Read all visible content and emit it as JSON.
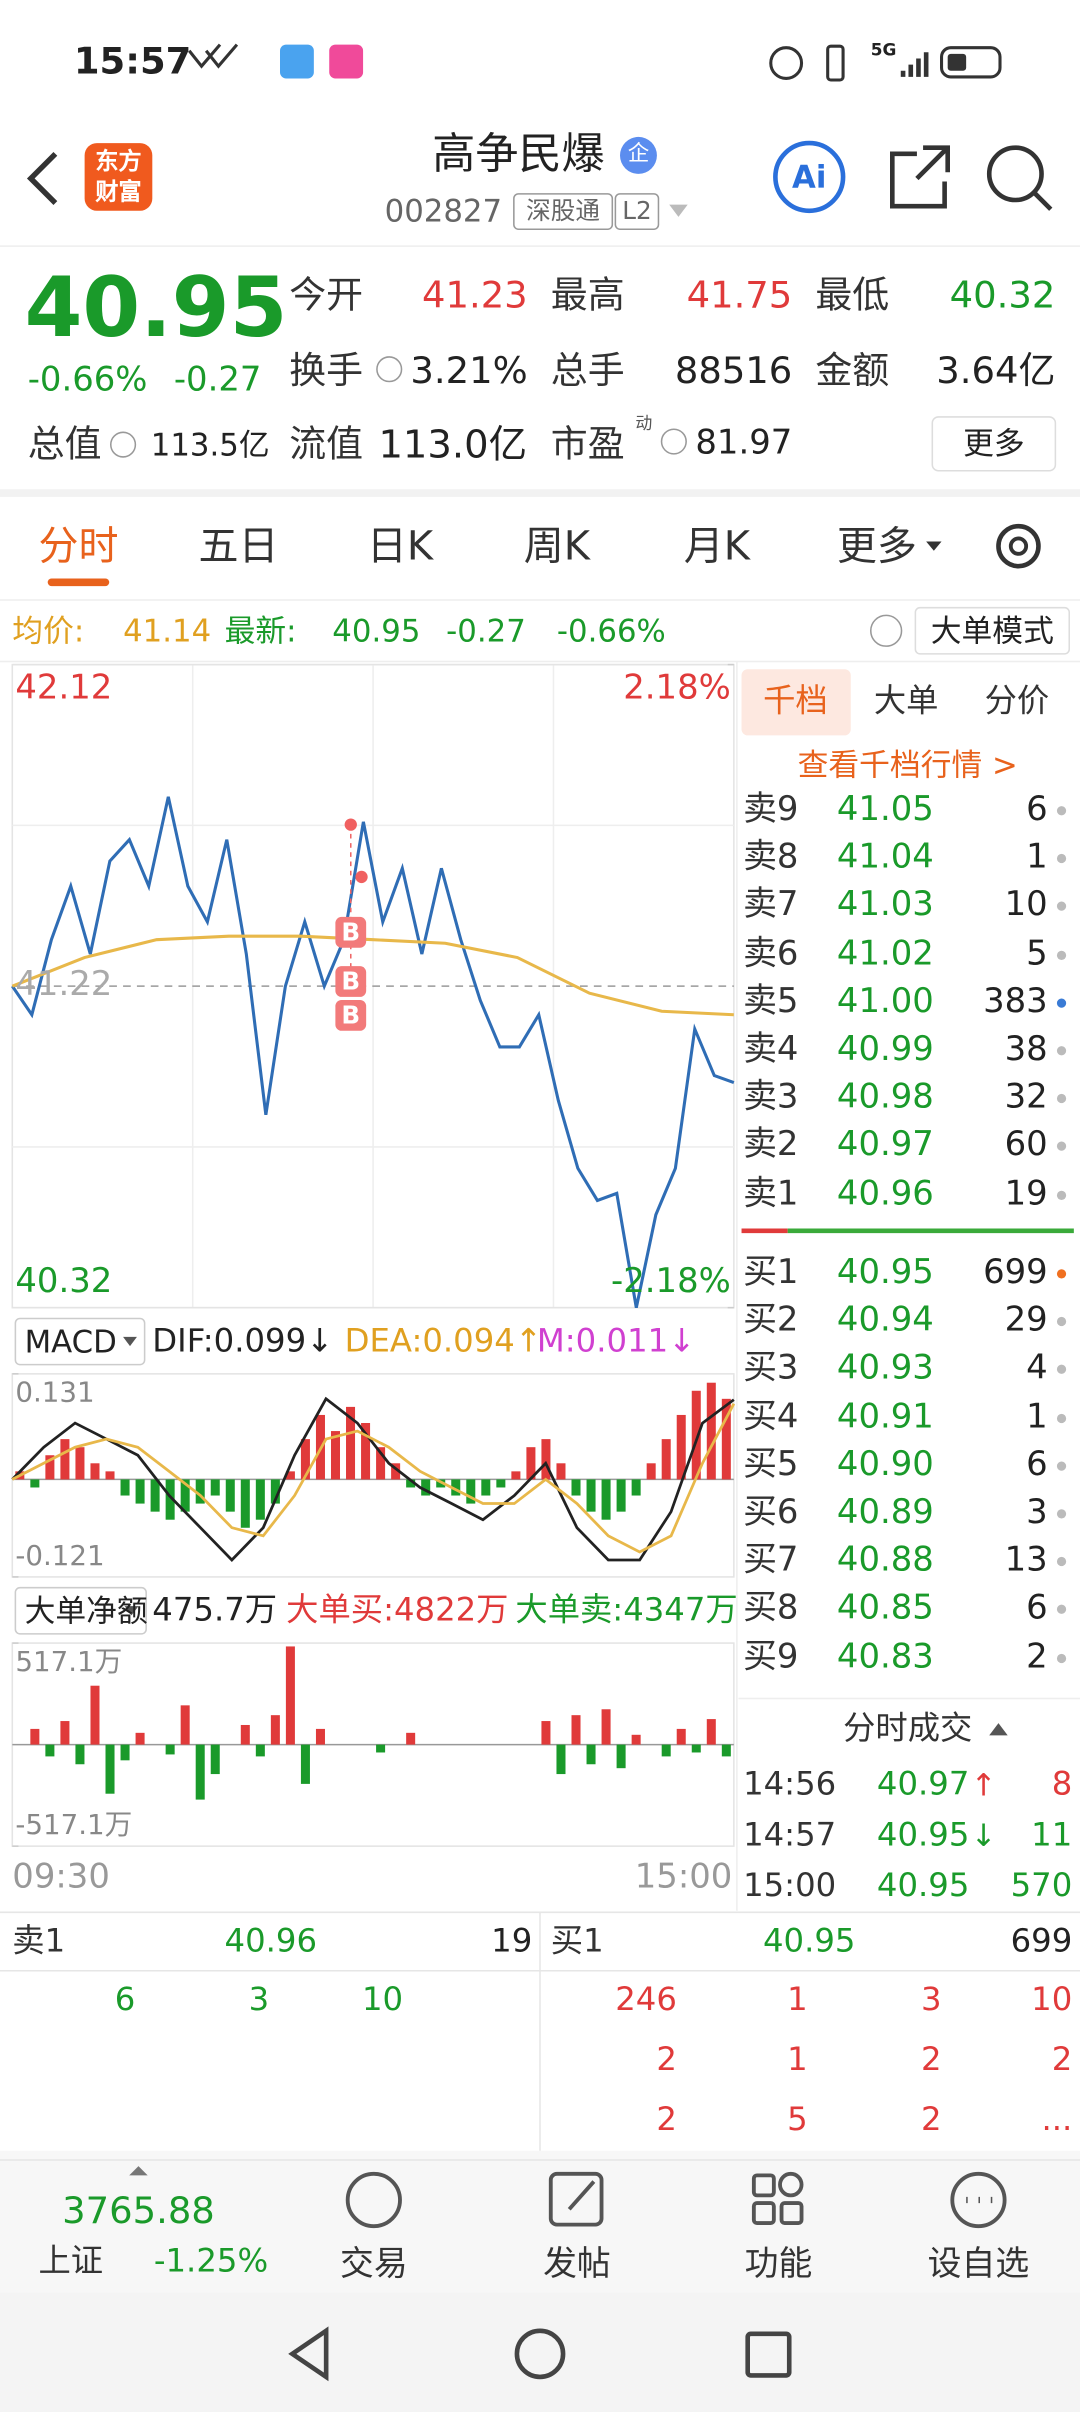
{
  "status_bar": {
    "time": "15:57",
    "network": "5G"
  },
  "header": {
    "logo": [
      "东方",
      "财富"
    ],
    "title": "高争民爆",
    "badge": "企",
    "code": "002827",
    "tags": [
      "深股通",
      "L2"
    ],
    "ai_button": "Ai"
  },
  "quote": {
    "price": "40.95",
    "change_pct": "-0.66%",
    "change": "-0.27",
    "fields": [
      {
        "label": "今开",
        "value": "41.23",
        "color": "#e03a3a"
      },
      {
        "label": "最高",
        "value": "41.75",
        "color": "#e03a3a"
      },
      {
        "label": "最低",
        "value": "40.32",
        "color": "#1a9a2a"
      },
      {
        "label": "换手",
        "value": "3.21%"
      },
      {
        "label": "总手",
        "value": "88516"
      },
      {
        "label": "金额",
        "value": "3.64亿"
      },
      {
        "label": "总值",
        "value": "113.5亿"
      },
      {
        "label": "流值",
        "value": "113.0亿"
      },
      {
        "label": "市盈",
        "value": "81.97",
        "sup": "动"
      }
    ],
    "more": "更多"
  },
  "tabs": [
    "分时",
    "五日",
    "日K",
    "周K",
    "月K",
    "更多"
  ],
  "active_tab": 0,
  "info_bar": {
    "avg_label": "均价:",
    "avg": "41.14",
    "latest_label": "最新:",
    "latest": "40.95",
    "change": "-0.27",
    "change_pct": "-0.66%",
    "mode": "大单模式"
  },
  "chart_data": [
    {
      "type": "line",
      "ylim": [
        40.32,
        42.12
      ],
      "yticks": [
        42.12,
        41.22,
        40.32
      ],
      "y2lim": [
        -2.18,
        2.18
      ],
      "y2ticks": [
        {
          "value": 2.18,
          "label": "2.18%"
        },
        {
          "value": -2.18,
          "label": "-2.18%"
        }
      ],
      "x_labels": [
        "09:30",
        "15:00"
      ],
      "markers": [
        "B",
        "B",
        "B"
      ],
      "series": [
        {
          "color": "#2f6db5",
          "values": [
            41.22,
            41.14,
            41.35,
            41.5,
            41.31,
            41.57,
            41.63,
            41.5,
            41.75,
            41.5,
            41.4,
            41.63,
            41.31,
            40.86,
            41.22,
            41.4,
            41.22,
            41.35,
            41.68,
            41.4,
            41.55,
            41.31,
            41.55,
            41.35,
            41.18,
            41.05,
            41.05,
            41.14,
            40.9,
            40.71,
            40.62,
            40.64,
            40.32,
            40.58,
            40.71,
            41.1,
            40.97,
            40.95
          ]
        },
        {
          "color": "#e8b84a",
          "values": [
            41.22,
            41.3,
            41.35,
            41.36,
            41.36,
            41.35,
            41.34,
            41.3,
            41.2,
            41.15,
            41.14
          ]
        }
      ]
    },
    {
      "type": "bar",
      "title": "MACD",
      "annotations": [
        "DIF:0.099↓",
        "DEA:0.094↑",
        "M:0.011↓"
      ],
      "ylim": [
        -0.121,
        0.131
      ],
      "yticks": [
        0.131,
        -0.121
      ],
      "up_color": "#e03a3a",
      "down_color": "#1a9a2a",
      "values": [
        0.01,
        -0.01,
        0.03,
        0.05,
        0.04,
        0.02,
        0.01,
        -0.02,
        -0.03,
        -0.04,
        -0.05,
        -0.04,
        -0.03,
        -0.02,
        -0.04,
        -0.06,
        -0.05,
        -0.03,
        0.01,
        0.05,
        0.08,
        0.06,
        0.09,
        0.07,
        0.04,
        0.02,
        -0.01,
        -0.02,
        -0.01,
        -0.02,
        -0.03,
        -0.02,
        -0.01,
        0.01,
        0.04,
        0.05,
        0.02,
        -0.02,
        -0.04,
        -0.05,
        -0.04,
        -0.02,
        0.02,
        0.05,
        0.08,
        0.11,
        0.12,
        0.1
      ],
      "series": [
        {
          "color": "#222222",
          "values": [
            0.0,
            0.04,
            0.07,
            0.05,
            0.03,
            -0.02,
            -0.06,
            -0.1,
            -0.06,
            0.03,
            0.1,
            0.07,
            0.02,
            -0.01,
            -0.03,
            -0.05,
            -0.02,
            0.02,
            -0.06,
            -0.1,
            -0.1,
            -0.04,
            0.07,
            0.099
          ]
        },
        {
          "color": "#e8b84a",
          "values": [
            0.0,
            0.02,
            0.04,
            0.05,
            0.04,
            0.01,
            -0.02,
            -0.06,
            -0.07,
            -0.02,
            0.05,
            0.06,
            0.04,
            0.01,
            -0.01,
            -0.03,
            -0.03,
            0.0,
            -0.03,
            -0.07,
            -0.09,
            -0.07,
            0.02,
            0.094
          ]
        }
      ]
    },
    {
      "type": "bar",
      "title": "大单净额",
      "annotations": [
        "475.7万",
        "大单买:4822万",
        "大单卖:4347万"
      ],
      "ylim": [
        -517.1,
        517.1
      ],
      "yticks": [
        {
          "value": 517.1,
          "label": "517.1万"
        },
        {
          "value": -517.1,
          "label": "-517.1万"
        }
      ],
      "up_color": "#e03a3a",
      "down_color": "#1a9a2a",
      "values": [
        0,
        80,
        -60,
        120,
        -100,
        300,
        -250,
        -80,
        60,
        0,
        -50,
        200,
        -280,
        -150,
        0,
        100,
        -60,
        150,
        500,
        -200,
        80,
        0,
        0,
        0,
        -40,
        0,
        60,
        0,
        0,
        0,
        0,
        0,
        0,
        0,
        0,
        120,
        -150,
        150,
        -100,
        180,
        -120,
        50,
        0,
        -60,
        80,
        -40,
        130,
        -60
      ]
    }
  ],
  "order_book": {
    "tabs": [
      "千档",
      "大单",
      "分价"
    ],
    "active_tab": 0,
    "link": "查看千档行情 >",
    "asks": [
      {
        "label": "卖9",
        "price": "41.05",
        "volume": "6",
        "dot": "#bbbbbb"
      },
      {
        "label": "卖8",
        "price": "41.04",
        "volume": "1",
        "dot": "#bbbbbb"
      },
      {
        "label": "卖7",
        "price": "41.03",
        "volume": "10",
        "dot": "#bbbbbb"
      },
      {
        "label": "卖6",
        "price": "41.02",
        "volume": "5",
        "dot": "#bbbbbb"
      },
      {
        "label": "卖5",
        "price": "41.00",
        "volume": "383",
        "dot": "#3a7bd5"
      },
      {
        "label": "卖4",
        "price": "40.99",
        "volume": "38",
        "dot": "#bbbbbb"
      },
      {
        "label": "卖3",
        "price": "40.98",
        "volume": "32",
        "dot": "#bbbbbb"
      },
      {
        "label": "卖2",
        "price": "40.97",
        "volume": "60",
        "dot": "#bbbbbb"
      },
      {
        "label": "卖1",
        "price": "40.96",
        "volume": "19",
        "dot": "#bbbbbb"
      }
    ],
    "bids": [
      {
        "label": "买1",
        "price": "40.95",
        "volume": "699",
        "dot": "#f07020"
      },
      {
        "label": "买2",
        "price": "40.94",
        "volume": "29",
        "dot": "#bbbbbb"
      },
      {
        "label": "买3",
        "price": "40.93",
        "volume": "4",
        "dot": "#bbbbbb"
      },
      {
        "label": "买4",
        "price": "40.91",
        "volume": "1",
        "dot": "#bbbbbb"
      },
      {
        "label": "买5",
        "price": "40.90",
        "volume": "6",
        "dot": "#bbbbbb"
      },
      {
        "label": "买6",
        "price": "40.89",
        "volume": "3",
        "dot": "#bbbbbb"
      },
      {
        "label": "买7",
        "price": "40.88",
        "volume": "13",
        "dot": "#bbbbbb"
      },
      {
        "label": "买8",
        "price": "40.85",
        "volume": "6",
        "dot": "#bbbbbb"
      },
      {
        "label": "买9",
        "price": "40.83",
        "volume": "2",
        "dot": "#bbbbbb"
      }
    ]
  },
  "ticks_panel": {
    "title": "分时成交",
    "rows": [
      {
        "time": "14:56",
        "price": "40.97",
        "arrow": "↑",
        "volume": "8"
      },
      {
        "time": "14:57",
        "price": "40.95",
        "arrow": "↓",
        "volume": "11"
      },
      {
        "time": "15:00",
        "price": "40.95",
        "volume": "570"
      }
    ]
  },
  "queue": {
    "ask": {
      "label": "卖1",
      "price": "40.96",
      "volume": "19",
      "rows": [
        [
          "6",
          "3",
          "10"
        ]
      ]
    },
    "bid": {
      "label": "买1",
      "price": "40.95",
      "volume": "699",
      "rows": [
        [
          "246",
          "1",
          "3",
          "10"
        ],
        [
          "2",
          "1",
          "2",
          "2"
        ],
        [
          "2",
          "5",
          "2",
          "..."
        ]
      ]
    }
  },
  "bottom_nav": {
    "index": {
      "value": "3765.88",
      "name": "上证",
      "change_pct": "-1.25%"
    },
    "items": [
      "交易",
      "发帖",
      "功能",
      "设自选"
    ]
  }
}
